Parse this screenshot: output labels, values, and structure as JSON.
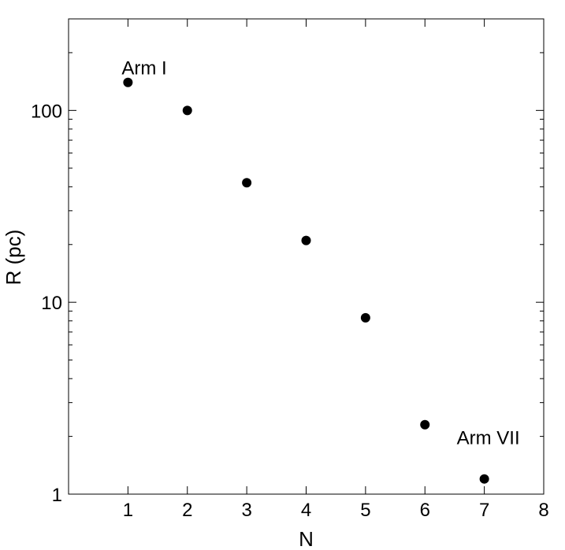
{
  "chart_data": {
    "type": "scatter",
    "title": "",
    "xlabel": "N",
    "ylabel": "R (pc)",
    "xlim": [
      0,
      8
    ],
    "ylim": [
      1,
      300
    ],
    "yscale": "log",
    "grid": false,
    "x_ticks": [
      1,
      2,
      3,
      4,
      5,
      6,
      7,
      8
    ],
    "x_tick_labels": [
      "1",
      "2",
      "3",
      "4",
      "5",
      "6",
      "7",
      "8"
    ],
    "y_ticks": [
      1,
      10,
      100
    ],
    "y_tick_labels": [
      "1",
      "10",
      "100"
    ],
    "series": [
      {
        "x": [
          1,
          2,
          3,
          4,
          5,
          6,
          7
        ],
        "y": [
          140,
          100,
          42,
          21,
          8.3,
          2.3,
          1.2
        ],
        "marker": "circle",
        "color": "#000000"
      }
    ],
    "annotations": [
      {
        "text": "Arm I",
        "x": 1,
        "y": 140
      },
      {
        "text": "Arm VII",
        "x": 7,
        "y": 1.2
      }
    ]
  }
}
